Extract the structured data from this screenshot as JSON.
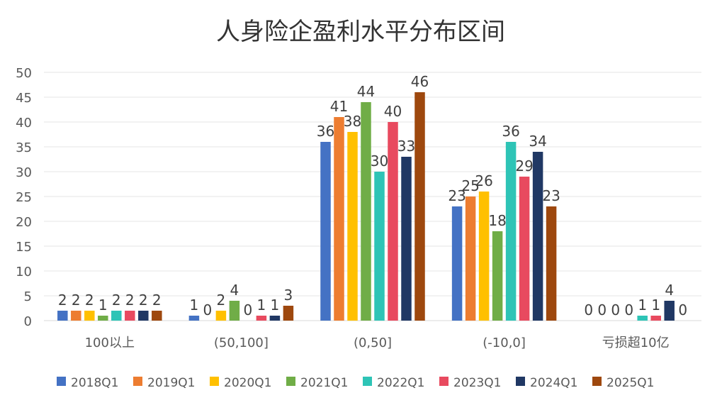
{
  "chart_data": {
    "type": "bar",
    "title": "人身险企盈利水平分布区间",
    "xlabel": "",
    "ylabel": "",
    "ylim": [
      0,
      50
    ],
    "yticks": [
      0,
      5,
      10,
      15,
      20,
      25,
      30,
      35,
      40,
      45,
      50
    ],
    "grid": true,
    "legend_position": "bottom",
    "categories": [
      "100以上",
      "(50,100]",
      "(0,50]",
      "(-10,0]",
      "亏损超10亿"
    ],
    "series": [
      {
        "name": "2018Q1",
        "color": "#4472C4",
        "values": [
          2,
          1,
          36,
          23,
          0
        ]
      },
      {
        "name": "2019Q1",
        "color": "#ED7D31",
        "values": [
          2,
          0,
          41,
          25,
          0
        ]
      },
      {
        "name": "2020Q1",
        "color": "#FFC000",
        "values": [
          2,
          2,
          38,
          26,
          0
        ]
      },
      {
        "name": "2021Q1",
        "color": "#70AD47",
        "values": [
          1,
          4,
          44,
          18,
          0
        ]
      },
      {
        "name": "2022Q1",
        "color": "#2EC4B6",
        "values": [
          2,
          0,
          30,
          36,
          1
        ]
      },
      {
        "name": "2023Q1",
        "color": "#E84A5F",
        "values": [
          2,
          1,
          40,
          29,
          1
        ]
      },
      {
        "name": "2024Q1",
        "color": "#203864",
        "values": [
          2,
          1,
          33,
          34,
          4
        ]
      },
      {
        "name": "2025Q1",
        "color": "#9E480E",
        "values": [
          2,
          3,
          46,
          23,
          0
        ]
      }
    ]
  }
}
